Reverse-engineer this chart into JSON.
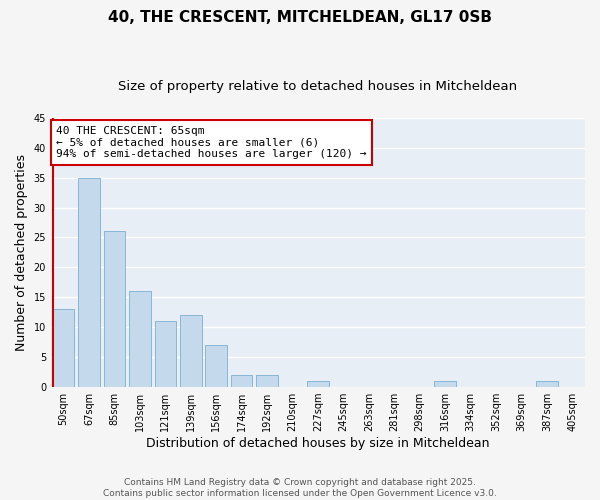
{
  "title_line1": "40, THE CRESCENT, MITCHELDEAN, GL17 0SB",
  "title_line2": "Size of property relative to detached houses in Mitcheldean",
  "xlabel": "Distribution of detached houses by size in Mitcheldean",
  "ylabel": "Number of detached properties",
  "categories": [
    "50sqm",
    "67sqm",
    "85sqm",
    "103sqm",
    "121sqm",
    "139sqm",
    "156sqm",
    "174sqm",
    "192sqm",
    "210sqm",
    "227sqm",
    "245sqm",
    "263sqm",
    "281sqm",
    "298sqm",
    "316sqm",
    "334sqm",
    "352sqm",
    "369sqm",
    "387sqm",
    "405sqm"
  ],
  "values": [
    13,
    35,
    26,
    16,
    11,
    12,
    7,
    2,
    2,
    0,
    1,
    0,
    0,
    0,
    0,
    1,
    0,
    0,
    0,
    1,
    0
  ],
  "bar_color": "#c5d9ed",
  "bar_edge_color": "#7bafd4",
  "highlight_color": "#cc0000",
  "ylim": [
    0,
    45
  ],
  "yticks": [
    0,
    5,
    10,
    15,
    20,
    25,
    30,
    35,
    40,
    45
  ],
  "annotation_text": "40 THE CRESCENT: 65sqm\n← 5% of detached houses are smaller (6)\n94% of semi-detached houses are larger (120) →",
  "annotation_box_facecolor": "#ffffff",
  "annotation_box_edgecolor": "#cc0000",
  "footer_text": "Contains HM Land Registry data © Crown copyright and database right 2025.\nContains public sector information licensed under the Open Government Licence v3.0.",
  "fig_facecolor": "#f5f5f5",
  "plot_facecolor": "#e8eef5",
  "grid_color": "#ffffff",
  "title1_fontsize": 11,
  "title2_fontsize": 9.5,
  "tick_fontsize": 7,
  "label_fontsize": 9,
  "footer_fontsize": 6.5,
  "annot_fontsize": 8
}
